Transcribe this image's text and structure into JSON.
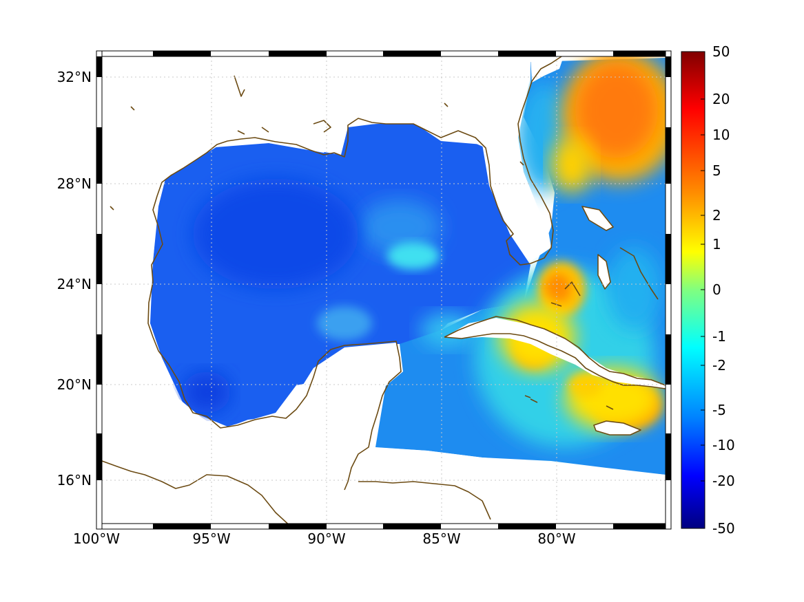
{
  "map": {
    "lat_ticks": [
      "32°N",
      "28°N",
      "24°N",
      "20°N",
      "16°N"
    ],
    "lon_ticks": [
      "100°W",
      "95°W",
      "90°W",
      "85°W",
      "80°W"
    ],
    "extent": {
      "lon_min": -100,
      "lon_max": -75.1,
      "lat_min": 14.3,
      "lat_max": 33.0
    },
    "coastline_color": "#6b4a12",
    "land_color": "#ffffff",
    "grid": "dotted"
  },
  "colorbar": {
    "tick_labels": [
      "50",
      "20",
      "10",
      "5",
      "2",
      "1",
      "0",
      "-1",
      "-2",
      "-5",
      "-10",
      "-20",
      "-50"
    ],
    "colormap": [
      "#800000",
      "#ff0000",
      "#ff8000",
      "#ffff00",
      "#80ff80",
      "#00ffff",
      "#0080ff",
      "#0000ff",
      "#000080"
    ]
  }
}
